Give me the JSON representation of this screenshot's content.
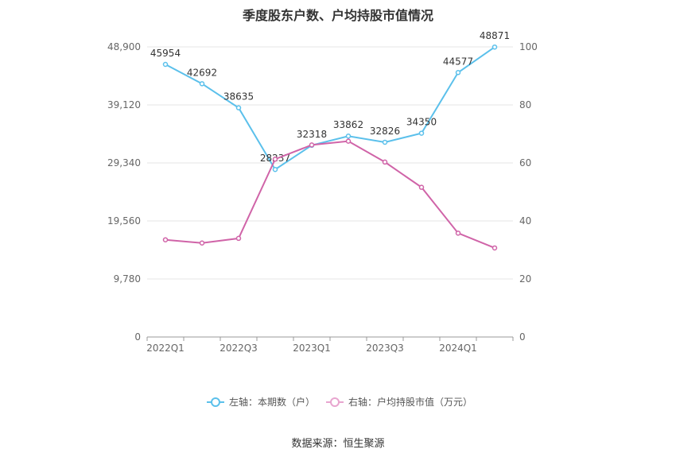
{
  "title": "季度股东户数、户均持股市值情况",
  "source": "数据来源：恒生聚源",
  "chart_data": {
    "type": "line",
    "x": [
      "2022Q1",
      "2022Q2",
      "2022Q3",
      "2022Q4",
      "2023Q1",
      "2023Q2",
      "2023Q3",
      "2023Q4",
      "2024Q1",
      "2024Q2"
    ],
    "x_tick_labels": [
      "2022Q1",
      "2022Q3",
      "2023Q1",
      "2023Q3",
      "2024Q1"
    ],
    "left_axis": {
      "ylim": [
        0,
        48900
      ],
      "ticks": [
        0,
        9780,
        19560,
        29340,
        39120,
        48900
      ],
      "tick_labels": [
        "0",
        "9,780",
        "19,560",
        "29,340",
        "39,120",
        "48,900"
      ]
    },
    "right_axis": {
      "ylim": [
        0,
        100
      ],
      "ticks": [
        0,
        20,
        40,
        60,
        80,
        100
      ],
      "tick_labels": [
        "0",
        "20",
        "40",
        "60",
        "80",
        "100"
      ]
    },
    "grid": true,
    "legend_position": "bottom",
    "series": [
      {
        "name": "左轴：本期数（户）",
        "axis": "left",
        "color": "#5bc0eb",
        "values": [
          45954,
          42692,
          38635,
          28237,
          32318,
          33862,
          32826,
          34350,
          44577,
          48871
        ],
        "labels": [
          "45954",
          "42692",
          "38635",
          "28237",
          "32318",
          "33862",
          "32826",
          "34350",
          "44577",
          "48871"
        ]
      },
      {
        "name": "右轴：户均持股市值（万元）",
        "axis": "right",
        "color": "#d064a8",
        "values": [
          33.5,
          32.4,
          34.0,
          61.3,
          66.2,
          67.5,
          60.3,
          51.6,
          35.8,
          30.7
        ]
      }
    ]
  }
}
